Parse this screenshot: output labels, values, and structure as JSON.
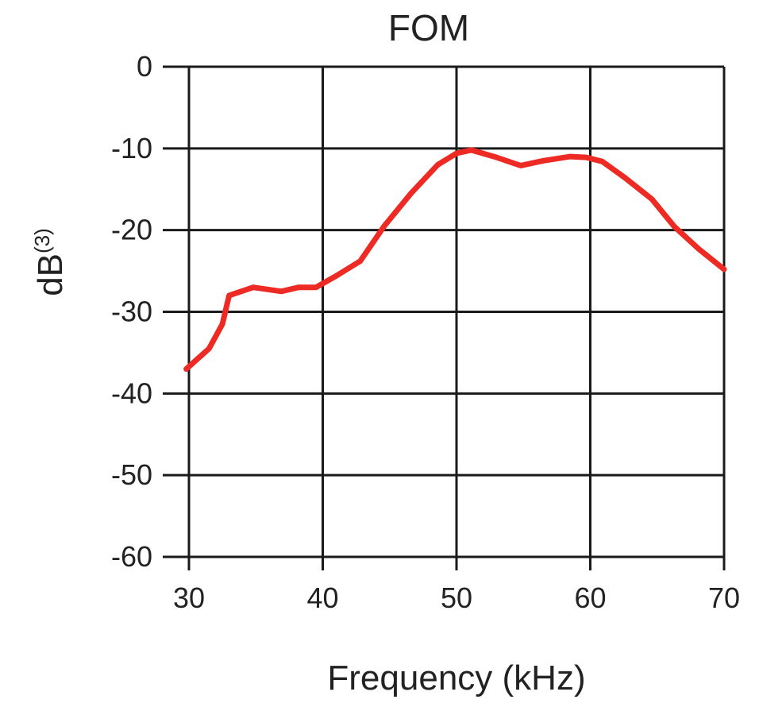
{
  "chart_data": {
    "type": "line",
    "title": "FOM",
    "xlabel": "Frequency (kHz)",
    "ylabel_main": "dB",
    "ylabel_sup": "(3)",
    "xlim": [
      30,
      70
    ],
    "ylim": [
      -60,
      0
    ],
    "xticks": [
      30,
      40,
      50,
      60,
      70
    ],
    "yticks": [
      0,
      -10,
      -20,
      -30,
      -40,
      -50,
      -60
    ],
    "x_tick_labels": [
      "30",
      "40",
      "50",
      "60",
      "70"
    ],
    "y_tick_labels": [
      "0",
      "-10",
      "-20",
      "-30",
      "-40",
      "-50",
      "-60"
    ],
    "grid": true,
    "series": [
      {
        "color": "#ee2a24",
        "x": [
          29.8,
          31.5,
          32.5,
          33,
          34.8,
          36.9,
          38.2,
          39.5,
          41,
          42.8,
          44.6,
          46.6,
          48.6,
          50,
          51.1,
          52.8,
          54.8,
          56.5,
          58.5,
          59.7,
          60.9,
          62.6,
          64.6,
          66.3,
          68.1,
          70
        ],
        "y": [
          -37,
          -34.5,
          -31.5,
          -28,
          -27,
          -27.5,
          -27,
          -27,
          -25.6,
          -23.8,
          -19.5,
          -15.5,
          -12,
          -10.6,
          -10.2,
          -11,
          -12.1,
          -11.5,
          -11,
          -11.1,
          -11.6,
          -13.6,
          -16.2,
          -19.6,
          -22.3,
          -24.8
        ]
      }
    ]
  }
}
